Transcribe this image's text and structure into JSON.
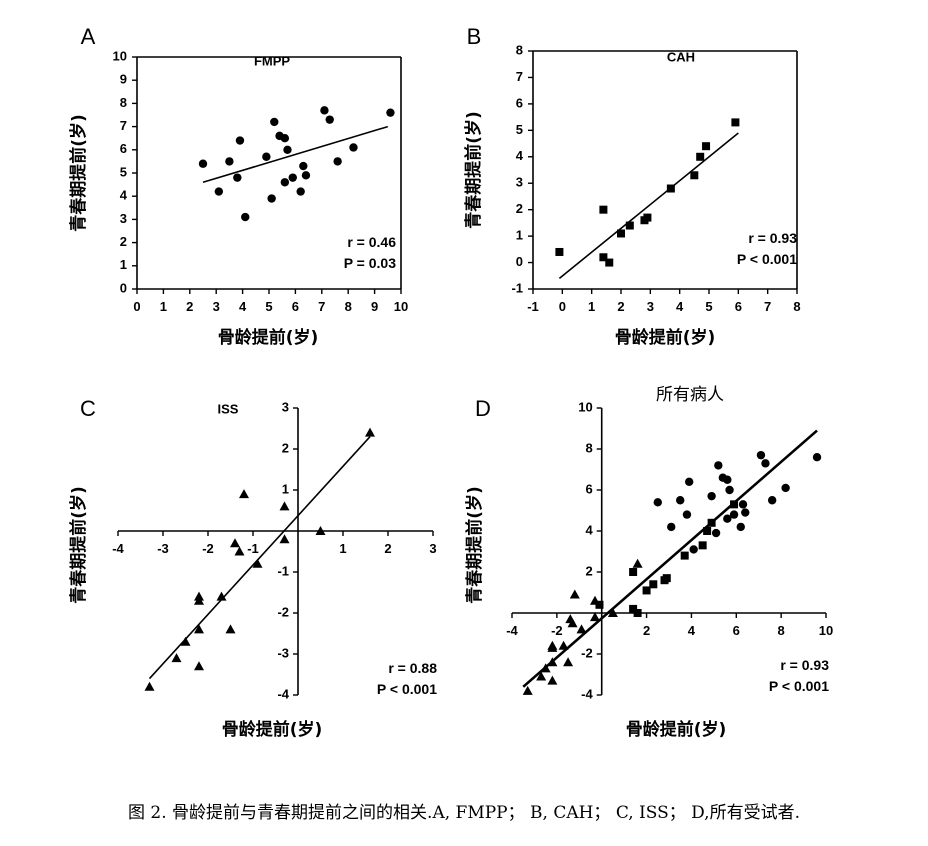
{
  "caption": "图 2. 骨龄提前与青春期提前之间的相关.A, FMPP； B, CAH； C, ISS； D,所有受试者.",
  "colors": {
    "ink": "#000000",
    "background": "#ffffff"
  },
  "chart_data": [
    {
      "panel": "A",
      "type": "scatter",
      "title": "FMPP",
      "xlabel": "骨龄提前(岁)",
      "ylabel": "青春期提前(岁)",
      "xlim": [
        0,
        10
      ],
      "ylim": [
        0,
        10
      ],
      "xticks": [
        0,
        1,
        2,
        3,
        4,
        5,
        6,
        7,
        8,
        9,
        10
      ],
      "yticks": [
        0,
        1,
        2,
        3,
        4,
        5,
        6,
        7,
        8,
        9,
        10
      ],
      "stats": [
        "r = 0.46",
        "P = 0.03"
      ],
      "fit": [
        [
          2.5,
          4.6
        ],
        [
          9.5,
          7.0
        ]
      ],
      "series": [
        {
          "marker": "circle",
          "points": [
            [
              2.5,
              5.4
            ],
            [
              3.1,
              4.2
            ],
            [
              3.5,
              5.5
            ],
            [
              3.8,
              4.8
            ],
            [
              3.9,
              6.4
            ],
            [
              4.1,
              3.1
            ],
            [
              4.9,
              5.7
            ],
            [
              5.1,
              3.9
            ],
            [
              5.2,
              7.2
            ],
            [
              5.4,
              6.6
            ],
            [
              5.6,
              6.5
            ],
            [
              5.7,
              6.0
            ],
            [
              5.6,
              4.6
            ],
            [
              5.9,
              4.8
            ],
            [
              6.2,
              4.2
            ],
            [
              6.3,
              5.3
            ],
            [
              6.4,
              4.9
            ],
            [
              7.1,
              7.7
            ],
            [
              7.3,
              7.3
            ],
            [
              7.6,
              5.5
            ],
            [
              8.2,
              6.1
            ],
            [
              9.6,
              7.6
            ]
          ]
        }
      ]
    },
    {
      "panel": "B",
      "type": "scatter",
      "title": "CAH",
      "xlabel": "骨龄提前(岁)",
      "ylabel": "青春期提前(岁)",
      "xlim": [
        -1,
        8
      ],
      "ylim": [
        -1,
        8
      ],
      "xticks": [
        -1,
        0,
        1,
        2,
        3,
        4,
        5,
        6,
        7,
        8
      ],
      "yticks": [
        -1,
        0,
        1,
        2,
        3,
        4,
        5,
        6,
        7,
        8
      ],
      "stats": [
        "r = 0.93",
        "P < 0.001"
      ],
      "fit": [
        [
          -0.1,
          -0.6
        ],
        [
          6.0,
          4.9
        ]
      ],
      "series": [
        {
          "marker": "square",
          "points": [
            [
              -0.1,
              0.4
            ],
            [
              1.4,
              2.0
            ],
            [
              1.4,
              0.2
            ],
            [
              1.6,
              0.0
            ],
            [
              2.0,
              1.1
            ],
            [
              2.3,
              1.4
            ],
            [
              2.8,
              1.6
            ],
            [
              2.9,
              1.7
            ],
            [
              3.7,
              2.8
            ],
            [
              4.5,
              3.3
            ],
            [
              4.7,
              4.0
            ],
            [
              4.9,
              4.4
            ],
            [
              5.9,
              5.3
            ]
          ]
        }
      ]
    },
    {
      "panel": "C",
      "type": "scatter",
      "title": "ISS",
      "xlabel": "骨龄提前(岁)",
      "ylabel": "青春期提前(岁)",
      "xlim": [
        -4,
        3
      ],
      "ylim": [
        -4,
        3
      ],
      "xticks": [
        -4,
        -3,
        -2,
        -1,
        1,
        2,
        3
      ],
      "yticks": [
        -4,
        -3,
        -2,
        -1,
        1,
        2,
        3
      ],
      "stats": [
        "r = 0.88",
        "P < 0.001"
      ],
      "fit": [
        [
          -3.3,
          -3.6
        ],
        [
          1.6,
          2.3
        ]
      ],
      "series": [
        {
          "marker": "triangle",
          "points": [
            [
              -3.3,
              -3.8
            ],
            [
              -2.7,
              -3.1
            ],
            [
              -2.5,
              -2.7
            ],
            [
              -2.2,
              -3.3
            ],
            [
              -2.2,
              -2.4
            ],
            [
              -2.2,
              -1.7
            ],
            [
              -2.2,
              -1.6
            ],
            [
              -1.7,
              -1.6
            ],
            [
              -1.5,
              -2.4
            ],
            [
              -1.4,
              -0.3
            ],
            [
              -1.3,
              -0.5
            ],
            [
              -1.2,
              0.9
            ],
            [
              -0.9,
              -0.8
            ],
            [
              -0.3,
              0.6
            ],
            [
              -0.3,
              -0.2
            ],
            [
              0.5,
              0.0
            ],
            [
              1.6,
              2.4
            ]
          ]
        }
      ]
    },
    {
      "panel": "D",
      "type": "scatter",
      "title": "所有病人",
      "xlabel": "骨龄提前(岁)",
      "ylabel": "青春期提前(岁)",
      "xlim": [
        -4,
        10
      ],
      "ylim": [
        -4,
        10
      ],
      "xticks": [
        -4,
        -2,
        2,
        4,
        6,
        8,
        10
      ],
      "yticks": [
        -4,
        -2,
        2,
        4,
        6,
        8,
        10
      ],
      "stats": [
        "r = 0.93",
        "P < 0.001"
      ],
      "fit": [
        [
          -3.5,
          -3.6
        ],
        [
          9.6,
          8.9
        ]
      ],
      "series": [
        {
          "marker": "circle",
          "points": [
            [
              2.5,
              5.4
            ],
            [
              3.1,
              4.2
            ],
            [
              3.5,
              5.5
            ],
            [
              3.8,
              4.8
            ],
            [
              3.9,
              6.4
            ],
            [
              4.1,
              3.1
            ],
            [
              4.9,
              5.7
            ],
            [
              5.1,
              3.9
            ],
            [
              5.2,
              7.2
            ],
            [
              5.4,
              6.6
            ],
            [
              5.6,
              6.5
            ],
            [
              5.7,
              6.0
            ],
            [
              5.6,
              4.6
            ],
            [
              5.9,
              4.8
            ],
            [
              6.2,
              4.2
            ],
            [
              6.3,
              5.3
            ],
            [
              6.4,
              4.9
            ],
            [
              7.1,
              7.7
            ],
            [
              7.3,
              7.3
            ],
            [
              7.6,
              5.5
            ],
            [
              8.2,
              6.1
            ],
            [
              9.6,
              7.6
            ]
          ]
        },
        {
          "marker": "square",
          "points": [
            [
              1.4,
              2.0
            ],
            [
              1.4,
              0.2
            ],
            [
              1.6,
              0.0
            ],
            [
              2.0,
              1.1
            ],
            [
              2.3,
              1.4
            ],
            [
              2.8,
              1.6
            ],
            [
              2.9,
              1.7
            ],
            [
              3.7,
              2.8
            ],
            [
              4.5,
              3.3
            ],
            [
              4.7,
              4.0
            ],
            [
              4.9,
              4.4
            ],
            [
              5.9,
              5.3
            ],
            [
              -0.1,
              0.4
            ]
          ]
        },
        {
          "marker": "triangle",
          "points": [
            [
              -3.3,
              -3.8
            ],
            [
              -2.7,
              -3.1
            ],
            [
              -2.5,
              -2.7
            ],
            [
              -2.2,
              -3.3
            ],
            [
              -2.2,
              -2.4
            ],
            [
              -2.2,
              -1.7
            ],
            [
              -2.2,
              -1.6
            ],
            [
              -1.7,
              -1.6
            ],
            [
              -1.5,
              -2.4
            ],
            [
              -1.4,
              -0.3
            ],
            [
              -1.3,
              -0.5
            ],
            [
              -1.2,
              0.9
            ],
            [
              -0.9,
              -0.8
            ],
            [
              -0.3,
              0.6
            ],
            [
              -0.3,
              -0.2
            ],
            [
              0.5,
              0.0
            ],
            [
              1.6,
              2.4
            ]
          ]
        }
      ]
    }
  ]
}
